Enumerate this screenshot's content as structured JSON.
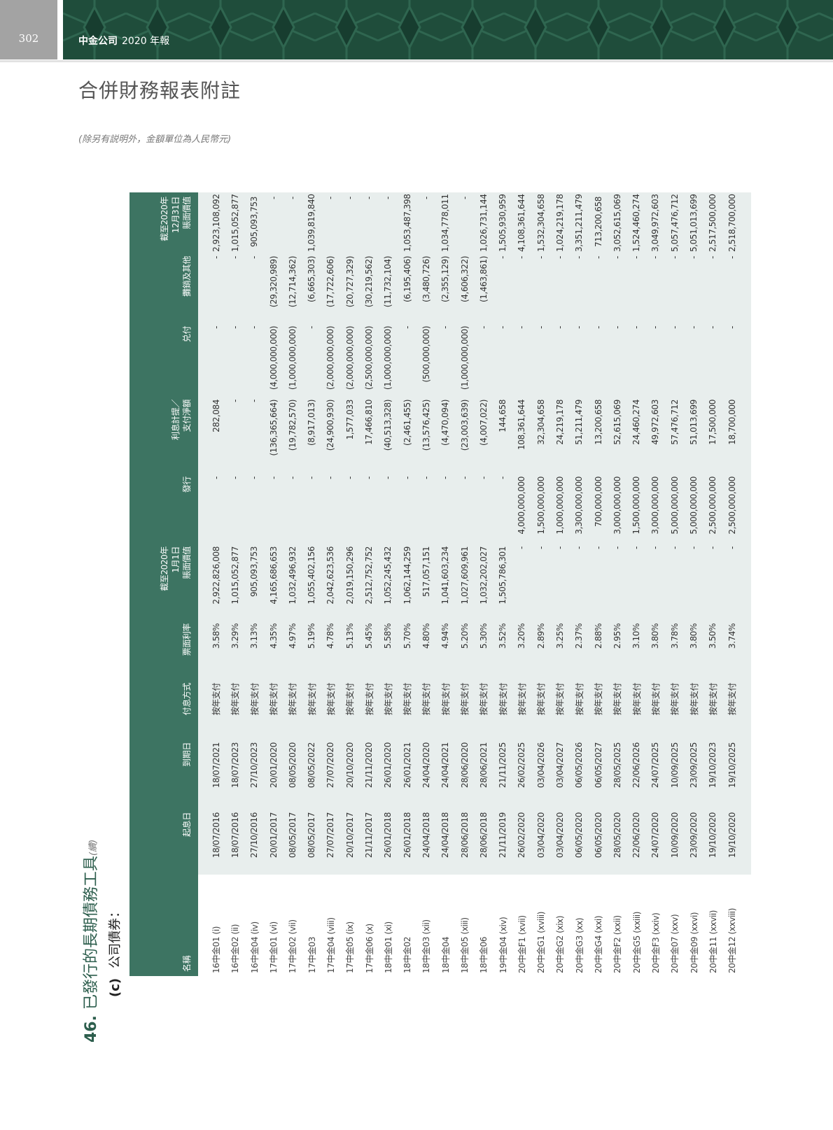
{
  "header": {
    "page_number": "302",
    "company": "中金公司",
    "report": "2020 年報"
  },
  "page_title": "合併財務報表附註",
  "subtitle": "(除另有説明外，金額單位為人民幣元)",
  "section": {
    "number": "46.",
    "title": "已發行的長期債務工具",
    "continued": "(續)",
    "sub_label": "(c)",
    "sub_title": "公司債券："
  },
  "colors": {
    "banner": "#1f4d3b",
    "table_header": "#3d7462",
    "table_body": "#e8eeed"
  },
  "table": {
    "columns": [
      {
        "lines": [
          "名稱"
        ]
      },
      {
        "lines": [
          "起息日"
        ]
      },
      {
        "lines": [
          "到期日"
        ]
      },
      {
        "lines": [
          "付息方式"
        ]
      },
      {
        "lines": [
          "票面利率"
        ]
      },
      {
        "lines": [
          "截至2020年",
          "1月1日",
          "賬面價值"
        ]
      },
      {
        "lines": [
          "發行"
        ]
      },
      {
        "lines": [
          "利息計提／",
          "支付淨額"
        ]
      },
      {
        "lines": [
          "兑付"
        ]
      },
      {
        "lines": [
          "攤銷及其他"
        ]
      },
      {
        "lines": [
          "截至2020年",
          "12月31日",
          "賬面價值"
        ]
      }
    ],
    "rows": [
      [
        "16中金01 (i)",
        "18/07/2016",
        "18/07/2021",
        "按年支付",
        "3.58%",
        "2,922,826,008",
        "-",
        "282,084",
        "-",
        "-",
        "2,923,108,092"
      ],
      [
        "16中金02 (ii)",
        "18/07/2016",
        "18/07/2023",
        "按年支付",
        "3.29%",
        "1,015,052,877",
        "-",
        "-",
        "-",
        "-",
        "1,015,052,877"
      ],
      [
        "16中金04 (iv)",
        "27/10/2016",
        "27/10/2023",
        "按年支付",
        "3.13%",
        "905,093,753",
        "-",
        "-",
        "-",
        "-",
        "905,093,753"
      ],
      [
        "17中金01 (vi)",
        "20/01/2017",
        "20/01/2020",
        "按年支付",
        "4.35%",
        "4,165,686,653",
        "-",
        "(136,365,664)",
        "(4,000,000,000)",
        "(29,320,989)",
        "-"
      ],
      [
        "17中金02 (vii)",
        "08/05/2017",
        "08/05/2020",
        "按年支付",
        "4.97%",
        "1,032,496,932",
        "-",
        "(19,782,570)",
        "(1,000,000,000)",
        "(12,714,362)",
        "-"
      ],
      [
        "17中金03",
        "08/05/2017",
        "08/05/2022",
        "按年支付",
        "5.19%",
        "1,055,402,156",
        "-",
        "(8,917,013)",
        "-",
        "(6,665,303)",
        "1,039,819,840"
      ],
      [
        "17中金04 (viii)",
        "27/07/2017",
        "27/07/2020",
        "按年支付",
        "4.78%",
        "2,042,623,536",
        "-",
        "(24,900,930)",
        "(2,000,000,000)",
        "(17,722,606)",
        "-"
      ],
      [
        "17中金05 (ix)",
        "20/10/2017",
        "20/10/2020",
        "按年支付",
        "5.13%",
        "2,019,150,296",
        "-",
        "1,577,033",
        "(2,000,000,000)",
        "(20,727,329)",
        "-"
      ],
      [
        "17中金06 (x)",
        "21/11/2017",
        "21/11/2020",
        "按年支付",
        "5.45%",
        "2,512,752,752",
        "-",
        "17,466,810",
        "(2,500,000,000)",
        "(30,219,562)",
        "-"
      ],
      [
        "18中金01 (xi)",
        "26/01/2018",
        "26/01/2020",
        "按年支付",
        "5.58%",
        "1,052,245,432",
        "-",
        "(40,513,328)",
        "(1,000,000,000)",
        "(11,732,104)",
        "-"
      ],
      [
        "18中金02",
        "26/01/2018",
        "26/01/2021",
        "按年支付",
        "5.70%",
        "1,062,144,259",
        "-",
        "(2,461,455)",
        "-",
        "(6,195,406)",
        "1,053,487,398"
      ],
      [
        "18中金03 (xii)",
        "24/04/2018",
        "24/04/2020",
        "按年支付",
        "4.80%",
        "517,057,151",
        "-",
        "(13,576,425)",
        "(500,000,000)",
        "(3,480,726)",
        "-"
      ],
      [
        "18中金04",
        "24/04/2018",
        "24/04/2021",
        "按年支付",
        "4.94%",
        "1,041,603,234",
        "-",
        "(4,470,094)",
        "-",
        "(2,355,129)",
        "1,034,778,011"
      ],
      [
        "18中金05 (xiii)",
        "28/06/2018",
        "28/06/2020",
        "按年支付",
        "5.20%",
        "1,027,609,961",
        "-",
        "(23,003,639)",
        "(1,000,000,000)",
        "(4,606,322)",
        "-"
      ],
      [
        "18中金06",
        "28/06/2018",
        "28/06/2021",
        "按年支付",
        "5.30%",
        "1,032,202,027",
        "-",
        "(4,007,022)",
        "-",
        "(1,463,861)",
        "1,026,731,144"
      ],
      [
        "19中金04 (xiv)",
        "21/11/2019",
        "21/11/2025",
        "按年支付",
        "3.52%",
        "1,505,786,301",
        "-",
        "144,658",
        "-",
        "-",
        "1,505,930,959"
      ],
      [
        "20中金F1 (xvii)",
        "26/02/2020",
        "26/02/2025",
        "按年支付",
        "3.20%",
        "-",
        "4,000,000,000",
        "108,361,644",
        "-",
        "-",
        "4,108,361,644"
      ],
      [
        "20中金G1 (xviii)",
        "03/04/2020",
        "03/04/2026",
        "按年支付",
        "2.89%",
        "-",
        "1,500,000,000",
        "32,304,658",
        "-",
        "-",
        "1,532,304,658"
      ],
      [
        "20中金G2 (xix)",
        "03/04/2020",
        "03/04/2027",
        "按年支付",
        "3.25%",
        "-",
        "1,000,000,000",
        "24,219,178",
        "-",
        "-",
        "1,024,219,178"
      ],
      [
        "20中金G3 (xx)",
        "06/05/2020",
        "06/05/2026",
        "按年支付",
        "2.37%",
        "-",
        "3,300,000,000",
        "51,211,479",
        "-",
        "-",
        "3,351,211,479"
      ],
      [
        "20中金G4 (xxi)",
        "06/05/2020",
        "06/05/2027",
        "按年支付",
        "2.88%",
        "-",
        "700,000,000",
        "13,200,658",
        "-",
        "-",
        "713,200,658"
      ],
      [
        "20中金F2 (xxii)",
        "28/05/2020",
        "28/05/2025",
        "按年支付",
        "2.95%",
        "-",
        "3,000,000,000",
        "52,615,069",
        "-",
        "-",
        "3,052,615,069"
      ],
      [
        "20中金G5 (xxiii)",
        "22/06/2020",
        "22/06/2026",
        "按年支付",
        "3.10%",
        "-",
        "1,500,000,000",
        "24,460,274",
        "-",
        "-",
        "1,524,460,274"
      ],
      [
        "20中金F3 (xxiv)",
        "24/07/2020",
        "24/07/2025",
        "按年支付",
        "3.80%",
        "-",
        "3,000,000,000",
        "49,972,603",
        "-",
        "-",
        "3,049,972,603"
      ],
      [
        "20中金07 (xxv)",
        "10/09/2020",
        "10/09/2025",
        "按年支付",
        "3.78%",
        "-",
        "5,000,000,000",
        "57,476,712",
        "-",
        "-",
        "5,057,476,712"
      ],
      [
        "20中金09 (xxvi)",
        "23/09/2020",
        "23/09/2025",
        "按年支付",
        "3.80%",
        "-",
        "5,000,000,000",
        "51,013,699",
        "-",
        "-",
        "5,051,013,699"
      ],
      [
        "20中金11 (xxvii)",
        "19/10/2020",
        "19/10/2023",
        "按年支付",
        "3.50%",
        "-",
        "2,500,000,000",
        "17,500,000",
        "-",
        "-",
        "2,517,500,000"
      ],
      [
        "20中金12 (xxviii)",
        "19/10/2020",
        "19/10/2025",
        "按年支付",
        "3.74%",
        "-",
        "2,500,000,000",
        "18,700,000",
        "-",
        "-",
        "2,518,700,000"
      ]
    ]
  }
}
